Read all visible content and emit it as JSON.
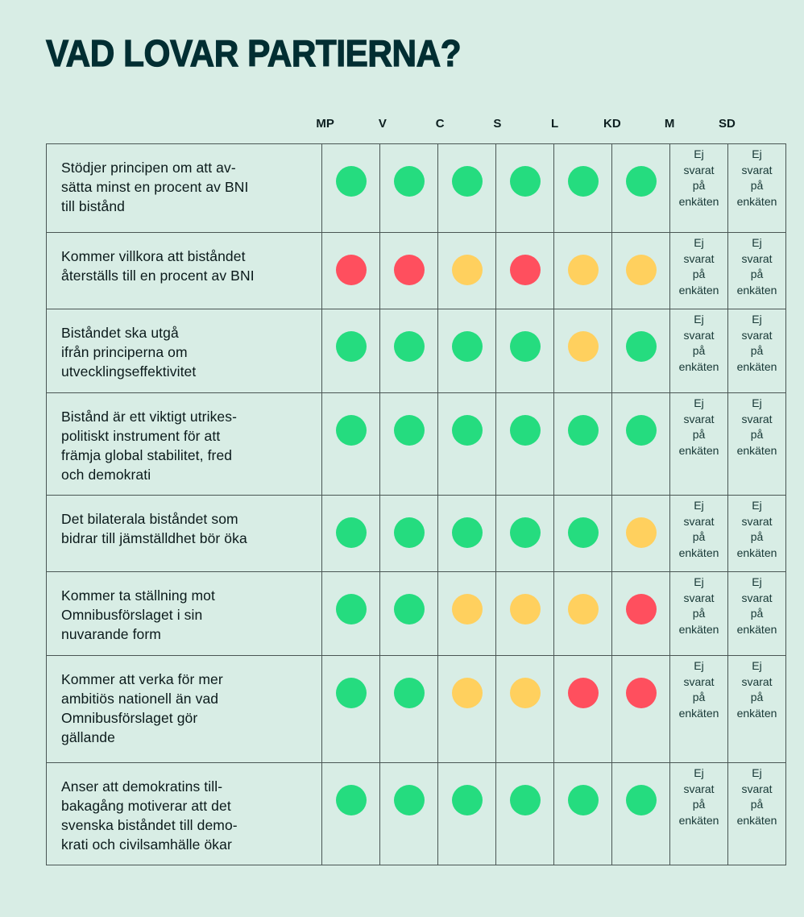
{
  "title": "VAD LOVAR PARTIERNA?",
  "colors": {
    "yes": "#25dc7f",
    "partial": "#ffd05e",
    "no": "#ff4f5e",
    "background": "#d8ede5",
    "title": "#022e32"
  },
  "chart_data": {
    "type": "table",
    "title": "VAD LOVAR PARTIERNA?",
    "columns": [
      "MP",
      "V",
      "C",
      "S",
      "L",
      "KD",
      "M",
      "SD"
    ],
    "legend_values": {
      "yes": "green",
      "partial": "yellow",
      "no": "red"
    },
    "rows": [
      {
        "question": "Stödjer principen om att av-sätta minst en procent av BNI till bistånd",
        "lines": [
          "Stödjer principen om att av-",
          "sätta minst en procent av BNI",
          "till bistånd"
        ],
        "values": [
          "yes",
          "yes",
          "yes",
          "yes",
          "yes",
          "yes"
        ]
      },
      {
        "question": "Kommer villkora att biståndet återställs till en procent av BNI",
        "lines": [
          "Kommer villkora att biståndet",
          "återställs till en procent av BNI"
        ],
        "values": [
          "no",
          "no",
          "partial",
          "no",
          "partial",
          "partial"
        ]
      },
      {
        "question": "Biståndet ska utgå ifrån principerna om utvecklingseffektivitet",
        "lines": [
          "Biståndet ska utgå",
          "ifrån principerna om",
          "utvecklingseffektivitet"
        ],
        "values": [
          "yes",
          "yes",
          "yes",
          "yes",
          "partial",
          "yes"
        ]
      },
      {
        "question": "Bistånd är ett viktigt utrikes-politiskt instrument för att främja global stabilitet, fred och demokrati",
        "lines": [
          "Bistånd är ett viktigt utrikes-",
          "politiskt instrument för att",
          "främja global stabilitet, fred",
          "och demokrati"
        ],
        "values": [
          "yes",
          "yes",
          "yes",
          "yes",
          "yes",
          "yes"
        ]
      },
      {
        "question": "Det bilaterala biståndet som bidrar till jämställdhet bör öka",
        "lines": [
          "Det bilaterala biståndet som",
          "bidrar till jämställdhet bör öka"
        ],
        "values": [
          "yes",
          "yes",
          "yes",
          "yes",
          "yes",
          "partial"
        ]
      },
      {
        "question": "Kommer ta ställning mot Omnibusförslaget i sin nuvarande form",
        "lines": [
          "Kommer ta ställning mot",
          "Omnibusförslaget i sin",
          "nuvarande form"
        ],
        "values": [
          "yes",
          "yes",
          "partial",
          "partial",
          "partial",
          "no"
        ]
      },
      {
        "question": "Kommer att verka för mer ambitiös nationell än vad Omnibusförslaget gör gällande",
        "lines": [
          "Kommer att verka för mer",
          "ambitiös nationell än vad",
          "Omnibusförslaget gör",
          "gällande"
        ],
        "values": [
          "yes",
          "yes",
          "partial",
          "partial",
          "no",
          "no"
        ]
      },
      {
        "question": "Anser att demokratins till-bakagång motiverar att det svenska biståndet till demo-krati och civilsamhälle ökar",
        "lines": [
          "Anser att demokratins till-",
          "bakagång motiverar att det",
          "svenska biståndet till demo-",
          "krati och civilsamhälle ökar"
        ],
        "values": [
          "yes",
          "yes",
          "yes",
          "yes",
          "yes",
          "yes"
        ]
      }
    ],
    "no_answer_columns": [
      "M",
      "SD"
    ],
    "no_answer_lines": [
      "Ej",
      "svarat",
      "på",
      "enkäten"
    ]
  }
}
